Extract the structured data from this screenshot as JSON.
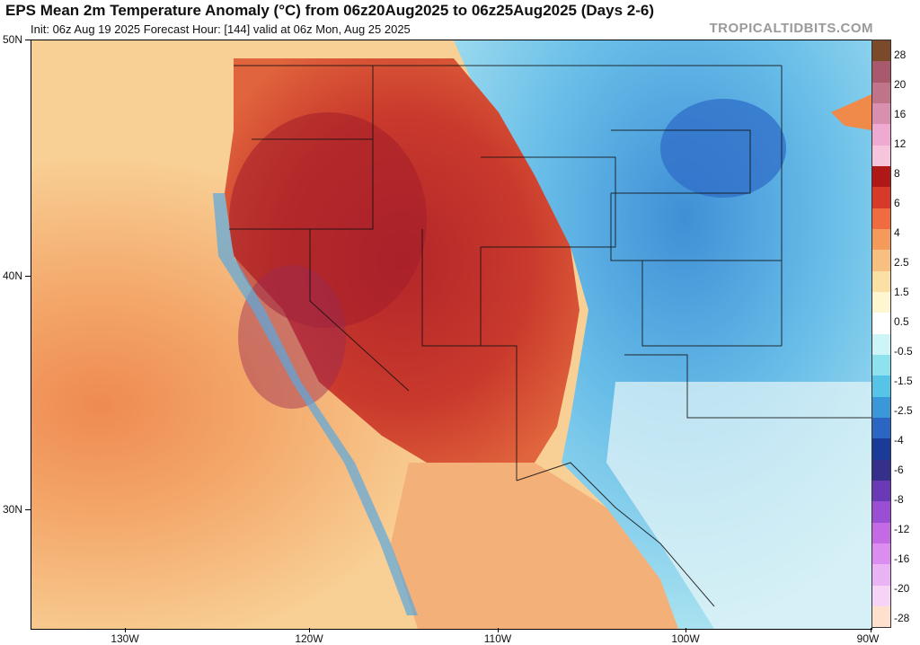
{
  "header": {
    "title": "EPS Mean 2m Temperature Anomaly (°C) from 06z20Aug2025 to 06z25Aug2025 (Days 2-6)",
    "subtitle": "Init: 06z Aug 19 2025   Forecast Hour: [144]   valid at 06z Mon, Aug 25 2025",
    "brand": "TROPICALTIDBITS.COM"
  },
  "map": {
    "lat_labels": [
      "50N",
      "40N",
      "30N"
    ],
    "lon_labels": [
      "130W",
      "120W",
      "110W",
      "100W",
      "90W"
    ],
    "region": "Western and Central United States"
  },
  "colorbar": {
    "labels": [
      "28",
      "20",
      "16",
      "12",
      "8",
      "6",
      "4",
      "2.5",
      "1.5",
      "0.5",
      "-0.5",
      "-1.5",
      "-2.5",
      "-4",
      "-6",
      "-8",
      "-12",
      "-16",
      "-20",
      "-28"
    ],
    "colors": [
      "#7a4a2a",
      "#a85a6c",
      "#c0748a",
      "#d990b0",
      "#eeaad0",
      "#f6c4dc",
      "#b01818",
      "#d83a2a",
      "#ee6c40",
      "#f49a5a",
      "#f7c080",
      "#fae0a4",
      "#fdf6d0",
      "#ffffff",
      "#cdf4f7",
      "#8ee2ee",
      "#55c4e6",
      "#3a98d8",
      "#2a66c2",
      "#1a3c98",
      "#35308a",
      "#6a3ab6",
      "#9a4ed4",
      "#c46ae4",
      "#dc8ef0",
      "#eab4f4",
      "#f6d4f6",
      "#ffe0cc"
    ]
  }
}
